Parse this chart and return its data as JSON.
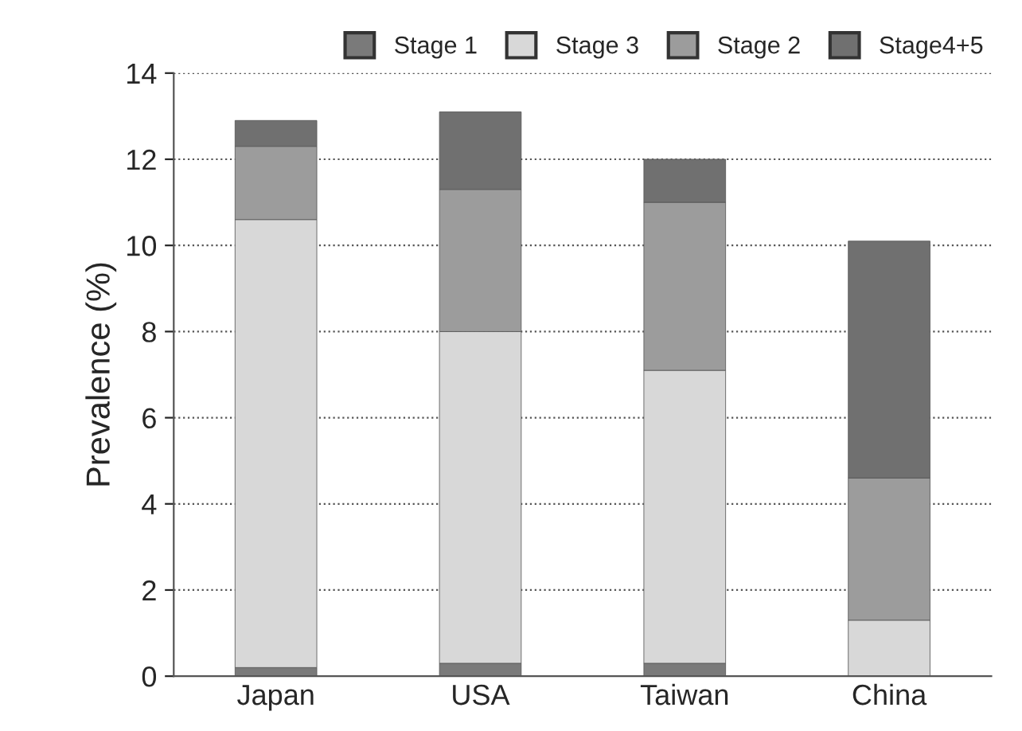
{
  "chart_data": {
    "type": "bar",
    "stacked": true,
    "ylabel": "Prevalence (%)",
    "categories": [
      "Japan",
      "USA",
      "Taiwan",
      "China"
    ],
    "series": [
      {
        "name": "Stage 1",
        "color": "#7a7a7a",
        "values": [
          0.2,
          0.3,
          0.3,
          0
        ]
      },
      {
        "name": "Stage 3",
        "color": "#d8d8d8",
        "values": [
          10.4,
          7.7,
          6.8,
          1.3
        ]
      },
      {
        "name": "Stage 2",
        "color": "#9c9c9c",
        "values": [
          1.7,
          3.3,
          3.9,
          3.3
        ]
      },
      {
        "name": "Stage4+5",
        "color": "#707070",
        "values": [
          0.6,
          1.8,
          1.0,
          5.5
        ]
      }
    ],
    "ylim": [
      0,
      14
    ],
    "yticks": [
      0,
      2,
      4,
      6,
      8,
      10,
      12,
      14
    ],
    "grid": "y",
    "legend": "top"
  }
}
